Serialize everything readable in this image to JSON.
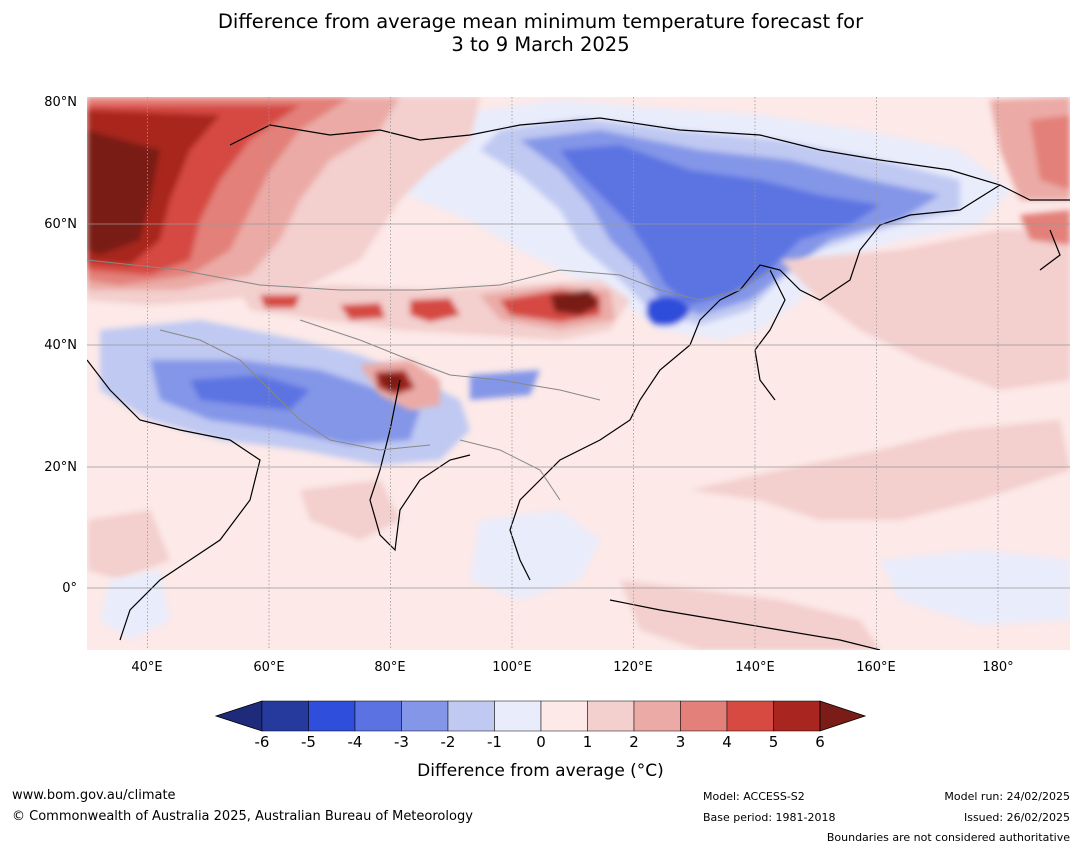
{
  "title": {
    "line1": "Difference from average mean minimum temperature forecast for",
    "line2": "3 to 9 March 2025"
  },
  "map": {
    "lat_labels": [
      "80°N",
      "60°N",
      "40°N",
      "20°N",
      "0°"
    ],
    "lon_labels": [
      "40°E",
      "60°E",
      "80°E",
      "100°E",
      "120°E",
      "140°E",
      "160°E",
      "180°"
    ],
    "extent": {
      "lon_min": 30,
      "lon_max": 191,
      "lat_min": -10,
      "lat_max": 80
    }
  },
  "colorbar": {
    "ticks": [
      "-6",
      "-5",
      "-4",
      "-3",
      "-2",
      "-1",
      "0",
      "1",
      "2",
      "3",
      "4",
      "5",
      "6"
    ],
    "colors": [
      "#263a9e",
      "#2f4edb",
      "#5b73e2",
      "#8496e8",
      "#c0c9f2",
      "#e9ecfb",
      "#fce9e8",
      "#f3cfcd",
      "#ebaaa6",
      "#e38079",
      "#d64a42",
      "#a8261f"
    ],
    "under_color": "#1e2b7a",
    "over_color": "#7a1c18",
    "label": "Difference from average (°C)"
  },
  "footer": {
    "website": "www.bom.gov.au/climate",
    "copyright": "© Commonwealth of Australia 2025, Australian Bureau of Meteorology",
    "model": "Model: ACCESS-S2",
    "base_period": "Base period: 1981-2018",
    "model_run": "Model run: 24/02/2025",
    "issued": "Issued: 26/02/2025",
    "boundaries_note": "Boundaries are not considered authoritative"
  }
}
